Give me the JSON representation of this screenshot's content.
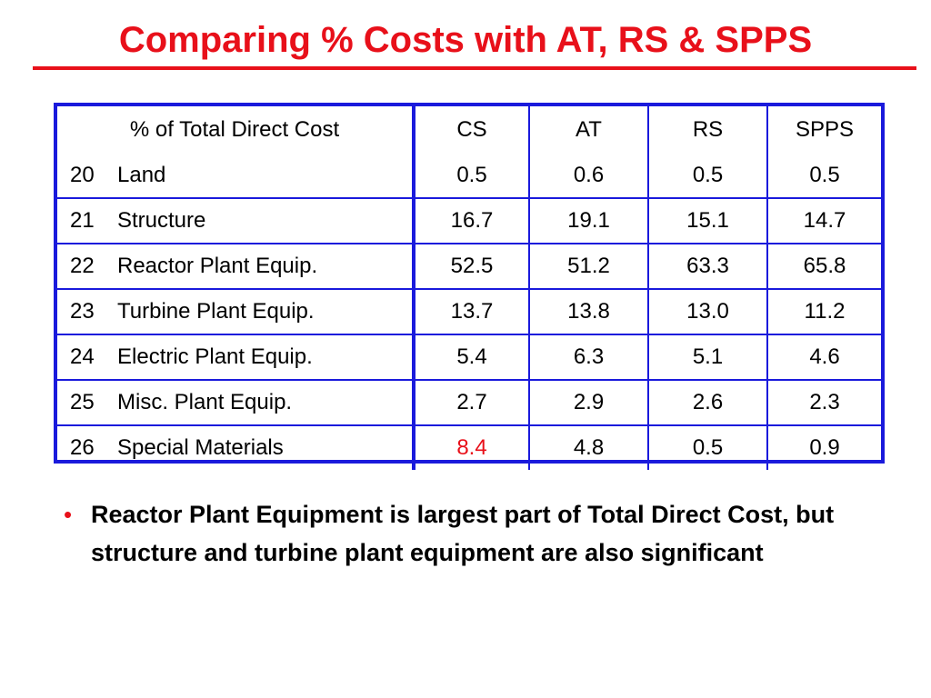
{
  "title": "Comparing % Costs with AT, RS & SPPS",
  "table": {
    "headers": [
      "% of Total Direct Cost",
      "CS",
      "AT",
      "RS",
      "SPPS"
    ],
    "rows": [
      {
        "code": "20",
        "name": "Land",
        "values": [
          "0.5",
          "0.6",
          "0.5",
          "0.5"
        ]
      },
      {
        "code": "21",
        "name": "Structure",
        "values": [
          "16.7",
          "19.1",
          "15.1",
          "14.7"
        ]
      },
      {
        "code": "22",
        "name": "Reactor Plant Equip.",
        "values": [
          "52.5",
          "51.2",
          "63.3",
          "65.8"
        ]
      },
      {
        "code": "23",
        "name": "Turbine Plant Equip.",
        "values": [
          "13.7",
          "13.8",
          "13.0",
          "11.2"
        ]
      },
      {
        "code": "24",
        "name": "Electric Plant Equip.",
        "values": [
          "5.4",
          "6.3",
          "5.1",
          "4.6"
        ]
      },
      {
        "code": "25",
        "name": "Misc. Plant Equip.",
        "values": [
          "2.7",
          "2.9",
          "2.6",
          "2.3"
        ]
      },
      {
        "code": "26",
        "name": "Special Materials",
        "values": [
          "8.4",
          "4.8",
          "0.5",
          "0.9"
        ]
      }
    ]
  },
  "bullets": [
    "Reactor Plant Equipment is largest part of Total Direct Cost, but structure and turbine plant equipment are also significant"
  ],
  "colors": {
    "title": "#e8101a",
    "table_border": "#1a1adc",
    "highlight_row": "#1a1adc",
    "highlight_cell": "#e8101a",
    "bullet": "#e8101a"
  }
}
